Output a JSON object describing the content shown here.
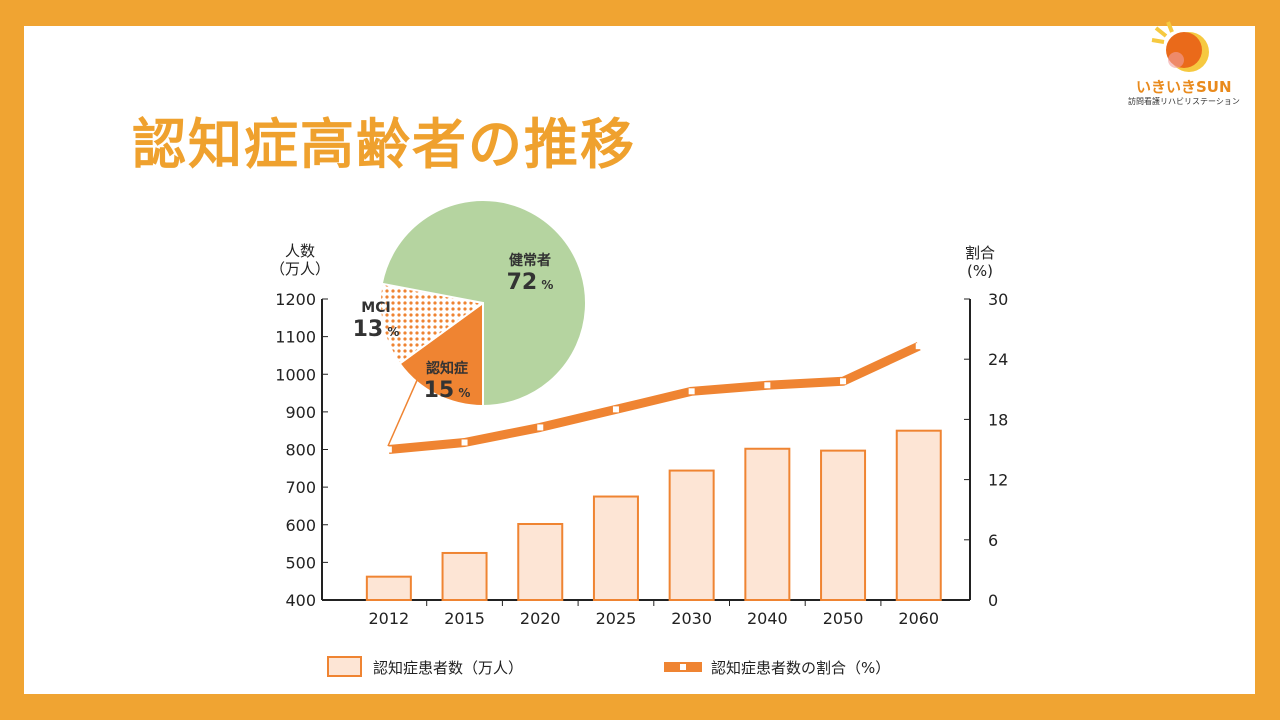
{
  "title": "認知症高齢者の推移",
  "logo": {
    "name": "いきいきSUN",
    "subtitle": "訪問看護リハビリステーション"
  },
  "colors": {
    "frame": "#F0A432",
    "bar_fill": "#FDE5D5",
    "bar_stroke": "#EF8432",
    "line": "#EF8432",
    "healthy": "#B5D4A0",
    "dementia": "#EF8432"
  },
  "chart_data": {
    "type": "bar+line",
    "categories": [
      "2012",
      "2015",
      "2020",
      "2025",
      "2030",
      "2040",
      "2050",
      "2060"
    ],
    "series": [
      {
        "name": "認知症患者数（万人）",
        "type": "bar",
        "axis": "left",
        "values": [
          462,
          525,
          602,
          675,
          744,
          802,
          797,
          850
        ]
      },
      {
        "name": "認知症患者数の割合（%）",
        "type": "line",
        "axis": "right",
        "values": [
          15.0,
          15.7,
          17.2,
          19.0,
          20.8,
          21.4,
          21.8,
          25.3
        ]
      }
    ],
    "ylabel_left": [
      "人数",
      "（万人）"
    ],
    "ylabel_right": [
      "割合",
      "(%)"
    ],
    "ylim_left": [
      400,
      1200
    ],
    "yticks_left": [
      400,
      500,
      600,
      700,
      800,
      900,
      1000,
      1100,
      1200
    ],
    "ylim_right": [
      0,
      30
    ],
    "yticks_right": [
      0,
      6,
      12,
      18,
      24,
      30
    ],
    "legend": "bottom",
    "pie": {
      "slices": [
        {
          "label": "健常者",
          "value": 72,
          "pct": "72",
          "unit": "%"
        },
        {
          "label": "MCI",
          "value": 13,
          "pct": "13",
          "unit": "%"
        },
        {
          "label": "認知症",
          "value": 15,
          "pct": "15",
          "unit": "%"
        }
      ]
    }
  }
}
